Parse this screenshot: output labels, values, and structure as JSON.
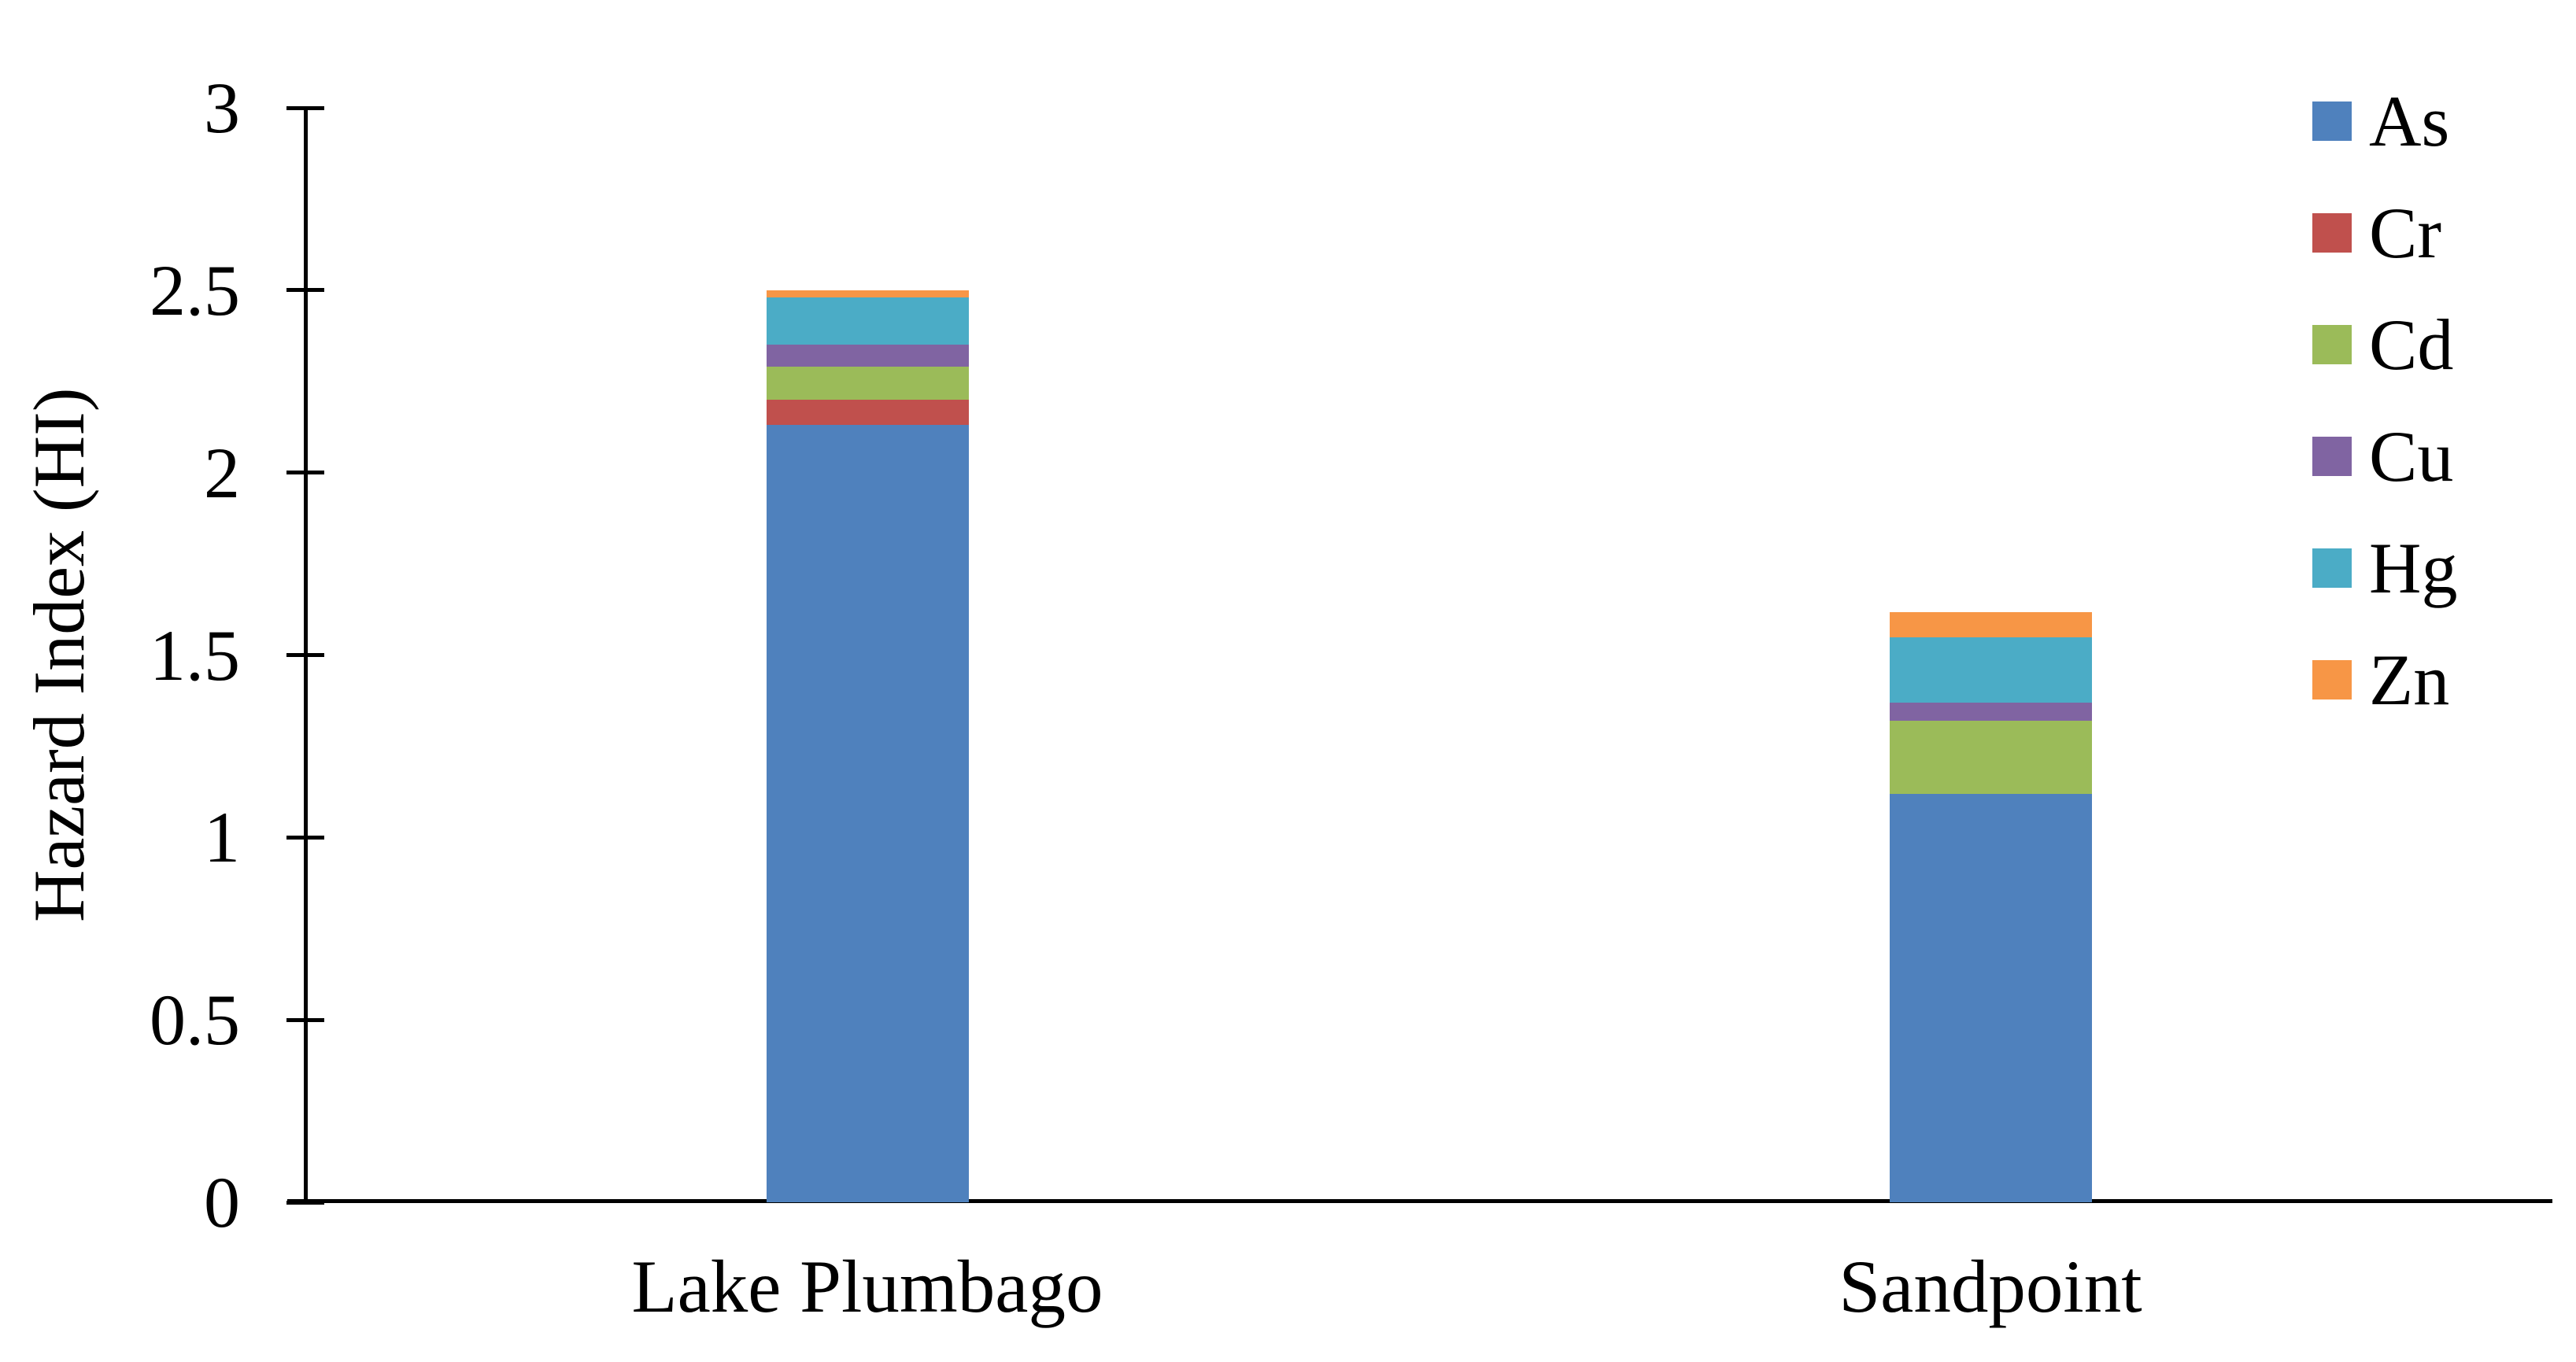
{
  "chart_data": {
    "type": "bar",
    "stacked": true,
    "title": "",
    "xlabel": "",
    "ylabel": "Hazard Index (HI)",
    "ylim": [
      0,
      3
    ],
    "ytick_step": 0.5,
    "ytick_labels": [
      "0",
      "0.5",
      "1",
      "1.5",
      "2",
      "2.5",
      "3"
    ],
    "grid": false,
    "legend_position": "right",
    "categories": [
      "Lake Plumbago",
      "Sandpoint"
    ],
    "series": [
      {
        "name": "As",
        "color": "#4F81BD",
        "values": [
          2.13,
          1.12
        ]
      },
      {
        "name": "Cr",
        "color": "#C0504D",
        "values": [
          0.07,
          0.0
        ]
      },
      {
        "name": "Cd",
        "color": "#9BBB59",
        "values": [
          0.09,
          0.2
        ]
      },
      {
        "name": "Cu",
        "color": "#8064A2",
        "values": [
          0.06,
          0.05
        ]
      },
      {
        "name": "Hg",
        "color": "#4BACC6",
        "values": [
          0.13,
          0.18
        ]
      },
      {
        "name": "Zn",
        "color": "#F79646",
        "values": [
          0.02,
          0.07
        ]
      }
    ],
    "totals": [
      2.5,
      1.62
    ]
  }
}
